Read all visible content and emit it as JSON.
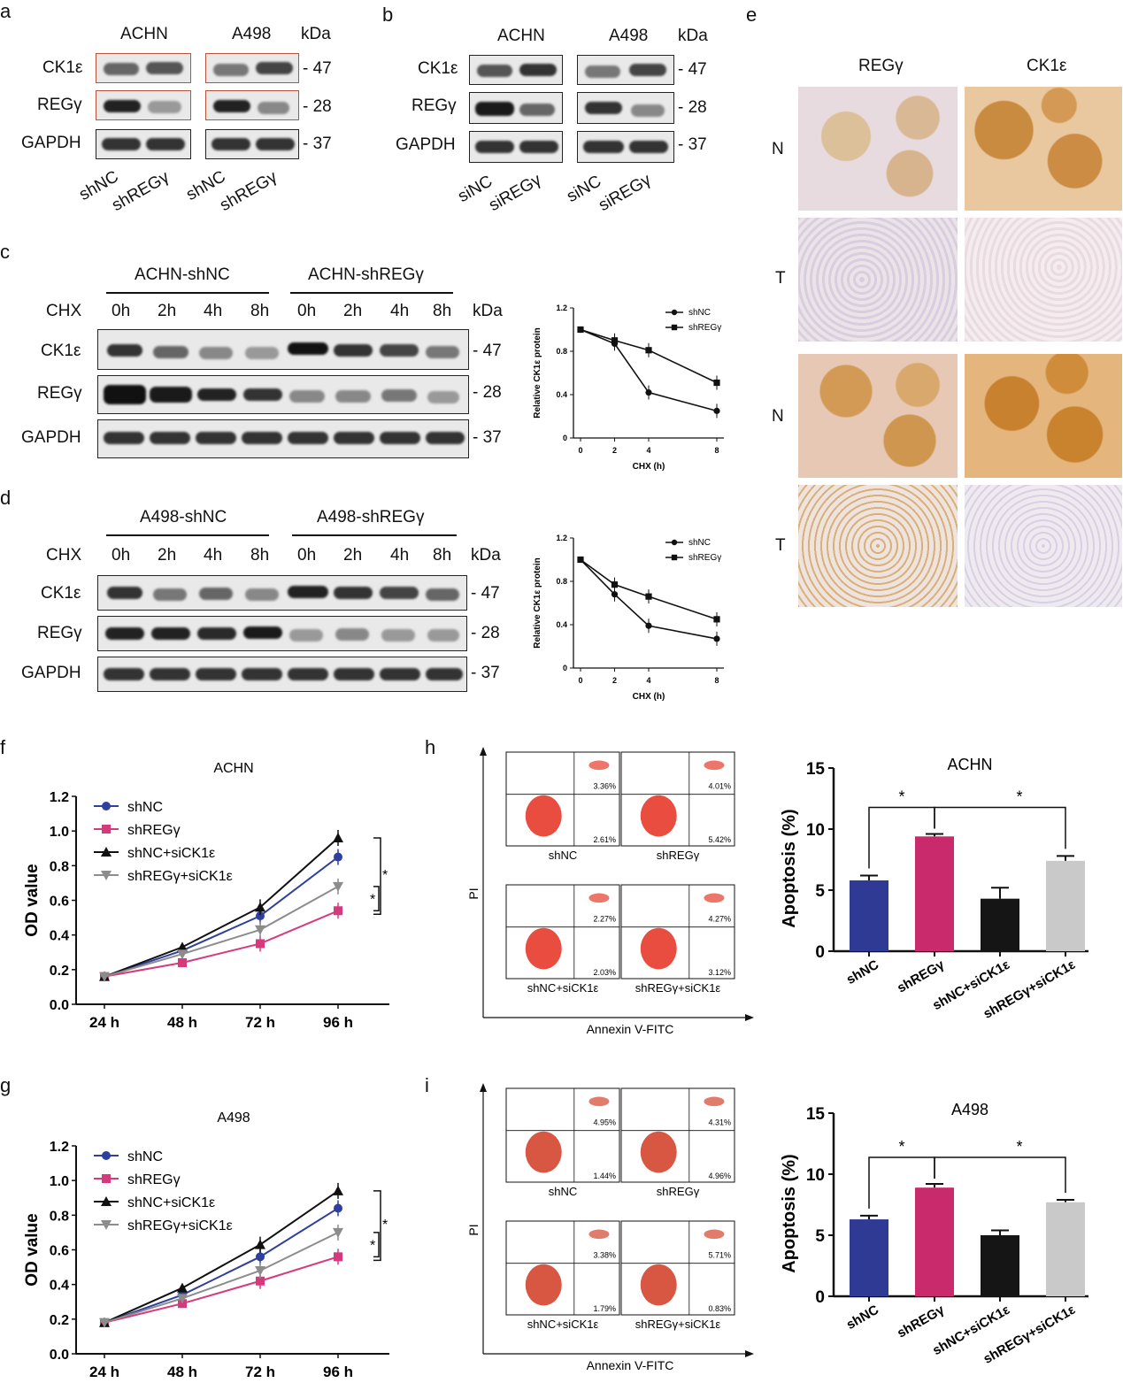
{
  "panels": {
    "a": "a",
    "b": "b",
    "c": "c",
    "d": "d",
    "e": "e",
    "f": "f",
    "g": "g",
    "h": "h",
    "i": "i"
  },
  "blots": {
    "cells": [
      "ACHN",
      "A498"
    ],
    "kda": "kDa",
    "proteins": [
      "CK1ε",
      "REGγ",
      "GAPDH"
    ],
    "sizes": [
      "- 47",
      "- 28",
      "- 37"
    ],
    "a_lanes": [
      "shNC",
      "shREGγ",
      "shNC",
      "shREGγ"
    ],
    "b_lanes": [
      "siNC",
      "siREGγ",
      "siNC",
      "siREGγ"
    ],
    "c_groups": [
      "ACHN-shNC",
      "ACHN-shREGγ"
    ],
    "d_groups": [
      "A498-shNC",
      "A498-shREGγ"
    ],
    "chx": "CHX",
    "timepoints": [
      "0h",
      "2h",
      "4h",
      "8h",
      "0h",
      "2h",
      "4h",
      "8h"
    ]
  },
  "ihc": {
    "cols": [
      "REGγ",
      "CK1ε"
    ],
    "rows": [
      "N",
      "T",
      "N",
      "T"
    ]
  },
  "flow": {
    "h": {
      "quads": [
        [
          "3.36%",
          "2.61%"
        ],
        [
          "4.01%",
          "5.42%"
        ],
        [
          "2.27%",
          "2.03%"
        ],
        [
          "4.27%",
          "3.12%"
        ]
      ]
    },
    "i": {
      "quads": [
        [
          "4.95%",
          "1.44%"
        ],
        [
          "4.31%",
          "4.96%"
        ],
        [
          "3.38%",
          "1.79%"
        ],
        [
          "5.71%",
          "0.83%"
        ]
      ]
    },
    "labels": [
      "shNC",
      "shREGγ",
      "shNC+siCK1ε",
      "shREGγ+siCK1ε"
    ],
    "ylabel": "PI",
    "xlabel": "Annexin V-FITC"
  },
  "chart_data": [
    {
      "id": "c-line",
      "type": "line",
      "x": [
        0,
        2,
        4,
        8
      ],
      "xlabel": "CHX (h)",
      "ylabel": "Relative CK1ε protein",
      "xticks": [
        "0",
        "2",
        "4",
        "8"
      ],
      "yticks": [
        "0",
        "0.4",
        "0.8",
        "1.2"
      ],
      "ylim": [
        0,
        1.2
      ],
      "series": [
        {
          "name": "shNC",
          "values": [
            1.0,
            0.87,
            0.42,
            0.25
          ],
          "marker": "circle"
        },
        {
          "name": "shREGγ",
          "values": [
            1.0,
            0.9,
            0.81,
            0.51
          ],
          "marker": "square"
        }
      ],
      "legend": "top-right"
    },
    {
      "id": "d-line",
      "type": "line",
      "x": [
        0,
        2,
        4,
        8
      ],
      "xlabel": "CHX (h)",
      "ylabel": "Relative CK1ε protein",
      "xticks": [
        "0",
        "2",
        "4",
        "8"
      ],
      "yticks": [
        "0",
        "0.4",
        "0.8",
        "1.2"
      ],
      "ylim": [
        0,
        1.2
      ],
      "series": [
        {
          "name": "shNC",
          "values": [
            1.0,
            0.68,
            0.39,
            0.27
          ],
          "marker": "circle"
        },
        {
          "name": "shREGγ",
          "values": [
            1.0,
            0.77,
            0.66,
            0.45
          ],
          "marker": "square"
        }
      ],
      "legend": "top-right"
    },
    {
      "id": "f-line",
      "type": "line",
      "title": "ACHN",
      "categories": [
        "24 h",
        "48 h",
        "72 h",
        "96 h"
      ],
      "ylabel": "OD value",
      "yticks": [
        "0.0",
        "0.2",
        "0.4",
        "0.6",
        "0.8",
        "1.0",
        "1.2"
      ],
      "ylim": [
        0,
        1.2
      ],
      "series": [
        {
          "name": "shNC",
          "values": [
            0.16,
            0.31,
            0.51,
            0.85
          ],
          "color": "#2f3f9e",
          "marker": "circle"
        },
        {
          "name": "shREGγ",
          "values": [
            0.16,
            0.24,
            0.35,
            0.54
          ],
          "color": "#d63a7d",
          "marker": "square"
        },
        {
          "name": "shNC+siCK1ε",
          "values": [
            0.16,
            0.33,
            0.56,
            0.96
          ],
          "color": "#111111",
          "marker": "triangle"
        },
        {
          "name": "shREGγ+siCK1ε",
          "values": [
            0.16,
            0.29,
            0.43,
            0.68
          ],
          "color": "#8c8c8c",
          "marker": "tridown"
        }
      ],
      "annotations": [
        "*",
        "*"
      ],
      "legend": "top-left"
    },
    {
      "id": "g-line",
      "type": "line",
      "title": "A498",
      "categories": [
        "24 h",
        "48 h",
        "72 h",
        "96 h"
      ],
      "ylabel": "OD value",
      "yticks": [
        "0.0",
        "0.2",
        "0.4",
        "0.6",
        "0.8",
        "1.0",
        "1.2"
      ],
      "ylim": [
        0,
        1.2
      ],
      "series": [
        {
          "name": "shNC",
          "values": [
            0.18,
            0.34,
            0.56,
            0.84
          ],
          "color": "#2f3f9e",
          "marker": "circle"
        },
        {
          "name": "shREGγ",
          "values": [
            0.18,
            0.29,
            0.42,
            0.56
          ],
          "color": "#d63a7d",
          "marker": "square"
        },
        {
          "name": "shNC+siCK1ε",
          "values": [
            0.18,
            0.38,
            0.63,
            0.94
          ],
          "color": "#111111",
          "marker": "triangle"
        },
        {
          "name": "shREGγ+siCK1ε",
          "values": [
            0.18,
            0.32,
            0.48,
            0.7
          ],
          "color": "#8c8c8c",
          "marker": "tridown"
        }
      ],
      "annotations": [
        "*",
        "*"
      ],
      "legend": "top-left"
    },
    {
      "id": "h-bar",
      "type": "bar",
      "title": "ACHN",
      "categories": [
        "shNC",
        "shREGγ",
        "shNC+siCK1ε",
        "shREGγ+siCK1ε"
      ],
      "values": [
        5.8,
        9.4,
        4.3,
        7.4
      ],
      "errors": [
        0.4,
        0.2,
        0.9,
        0.4
      ],
      "colors": [
        "#2f3a94",
        "#c82a6c",
        "#151515",
        "#c9c9c9"
      ],
      "ylabel": "Apoptosis (%)",
      "yticks": [
        "0",
        "5",
        "10",
        "15"
      ],
      "ylim": [
        0,
        15
      ],
      "annotations": [
        "*",
        "*"
      ]
    },
    {
      "id": "i-bar",
      "type": "bar",
      "title": "A498",
      "categories": [
        "shNC",
        "shREGγ",
        "shNC+siCK1ε",
        "shREGγ+siCK1ε"
      ],
      "values": [
        6.3,
        8.9,
        5.0,
        7.7
      ],
      "errors": [
        0.3,
        0.3,
        0.4,
        0.2
      ],
      "colors": [
        "#2f3a94",
        "#c82a6c",
        "#151515",
        "#c9c9c9"
      ],
      "ylabel": "Apoptosis (%)",
      "yticks": [
        "0",
        "5",
        "10",
        "15"
      ],
      "ylim": [
        0,
        15
      ],
      "annotations": [
        "*",
        "*"
      ]
    }
  ]
}
